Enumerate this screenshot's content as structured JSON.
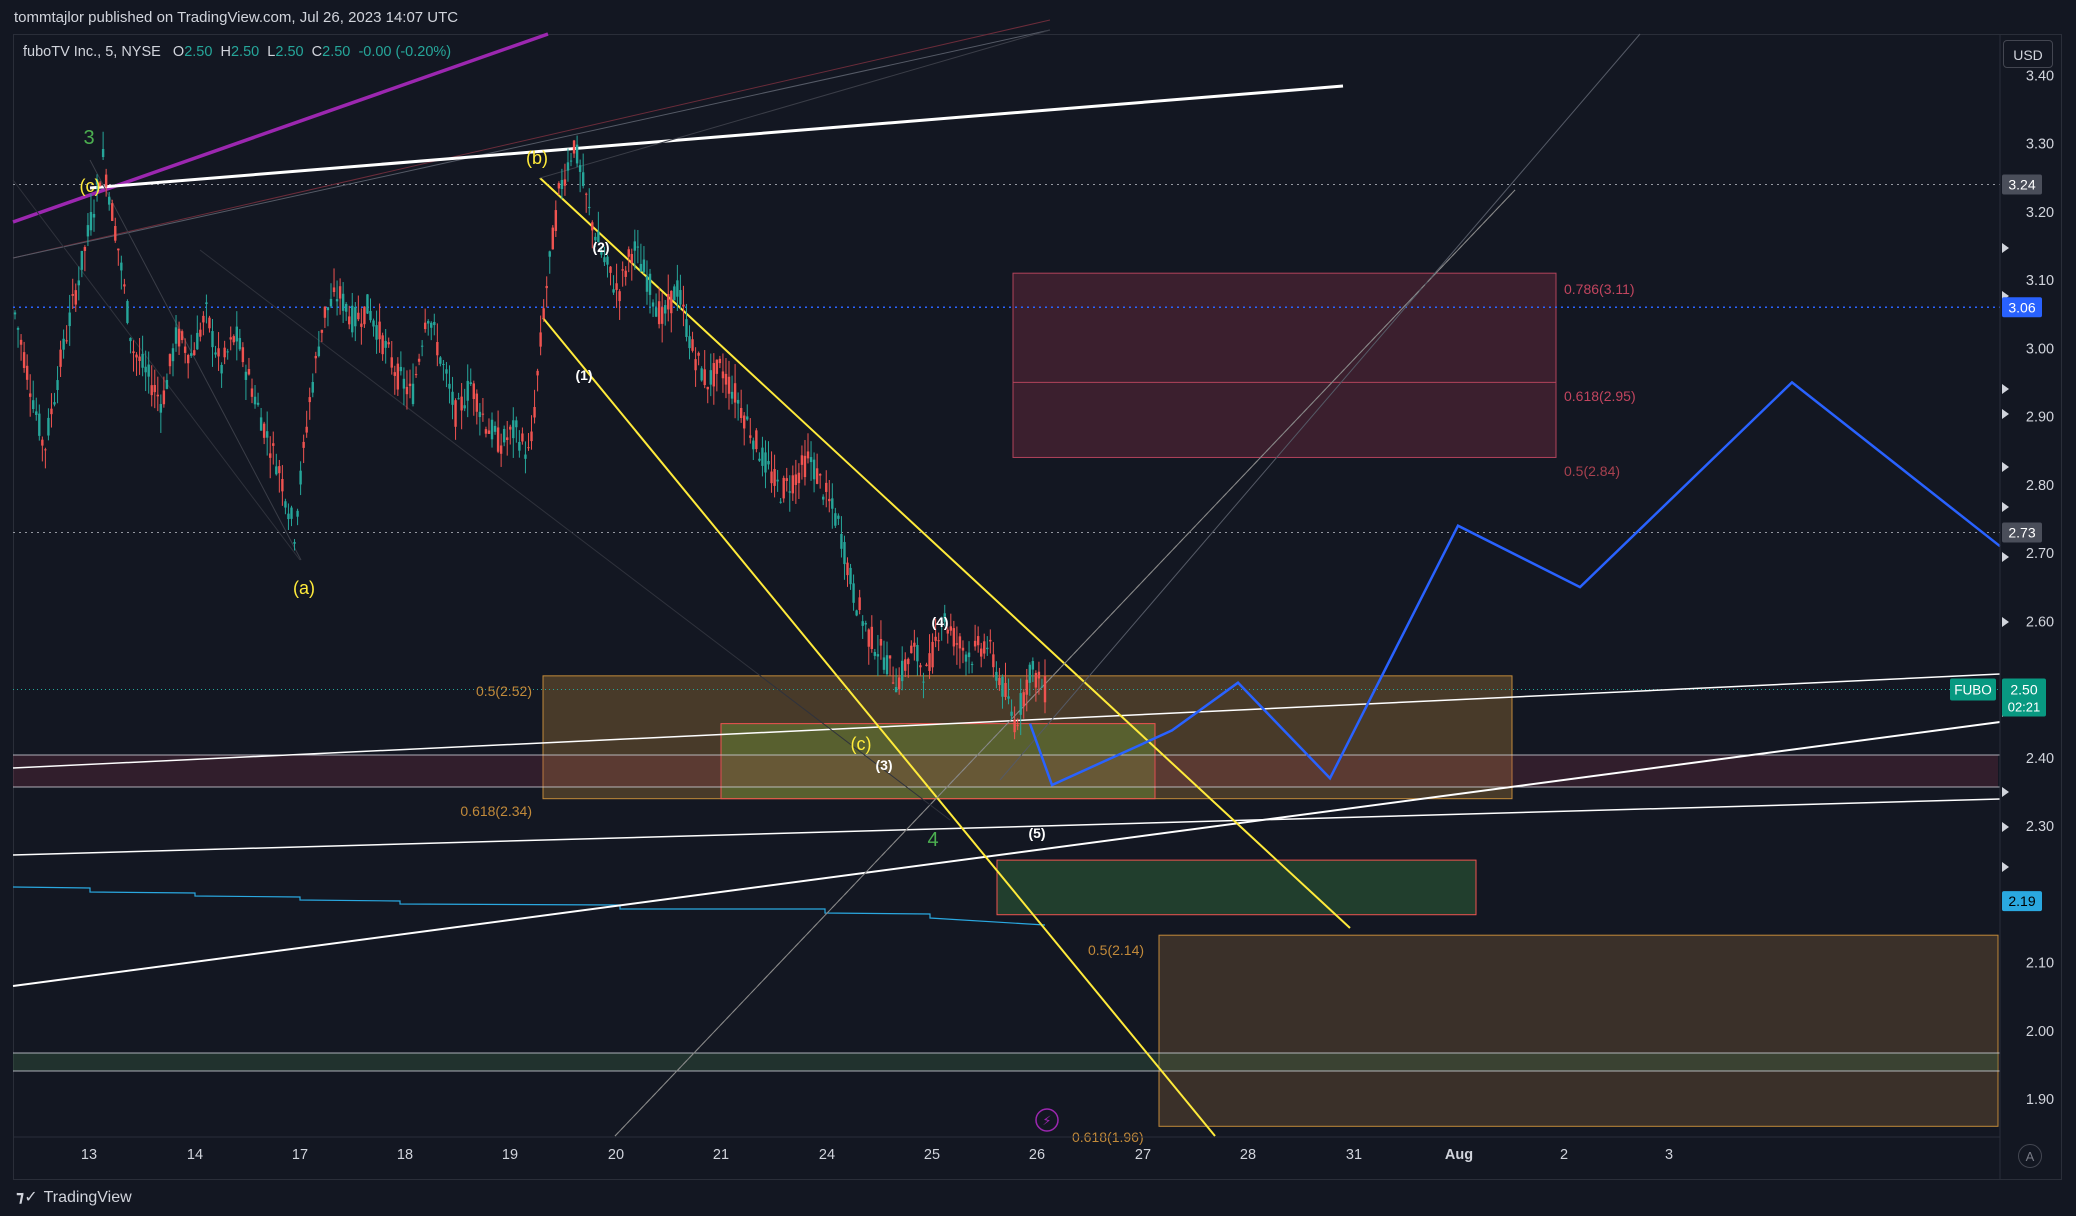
{
  "header": {
    "published": "tommtajlor published on TradingView.com, Jul 26, 2023 14:07 UTC"
  },
  "symbol": {
    "name": "fuboTV Inc., 5, NYSE",
    "o_label": "O",
    "o": "2.50",
    "h_label": "H",
    "h": "2.50",
    "l_label": "L",
    "l": "2.50",
    "c_label": "C",
    "c": "2.50",
    "change": "-0.00 (-0.20%)"
  },
  "currency_button": "USD",
  "footer": {
    "brand": "TradingView",
    "auto_label": "A"
  },
  "colors": {
    "background": "#131722",
    "up": "#26a69a",
    "down": "#ef5350",
    "projection": "#2962ff",
    "channel": "#ffeb3b",
    "fan": "#9c27b0",
    "fib_red": "#b2435b",
    "fib_orange": "#c28a3a"
  },
  "chart_data": {
    "type": "candlestick",
    "ylim": [
      1.86,
      3.5
    ],
    "y_ticks": [
      "3.40",
      "3.30",
      "3.20",
      "3.10",
      "3.00",
      "2.90",
      "2.80",
      "2.70",
      "2.60",
      "2.40",
      "2.30",
      "2.10",
      "2.00",
      "1.90"
    ],
    "x_ticks": [
      "13",
      "14",
      "17",
      "18",
      "19",
      "20",
      "21",
      "24",
      "25",
      "26",
      "27",
      "28",
      "31",
      "Aug",
      "2",
      "3"
    ],
    "price_path": [
      3.05,
      2.95,
      2.85,
      2.97,
      3.07,
      3.17,
      3.28,
      3.15,
      3.0,
      2.96,
      2.92,
      3.02,
      2.99,
      3.05,
      2.97,
      3.02,
      2.95,
      2.88,
      2.82,
      2.73,
      2.92,
      3.05,
      3.08,
      3.04,
      3.06,
      3.01,
      2.96,
      2.93,
      3.06,
      2.98,
      2.9,
      2.95,
      2.89,
      2.86,
      2.88,
      2.84,
      3.07,
      3.23,
      3.3,
      3.2,
      3.13,
      3.08,
      3.15,
      3.1,
      3.04,
      3.09,
      3.0,
      2.95,
      2.97,
      2.93,
      2.88,
      2.83,
      2.79,
      2.81,
      2.84,
      2.79,
      2.74,
      2.64,
      2.58,
      2.55,
      2.51,
      2.56,
      2.52,
      2.61,
      2.57,
      2.55,
      2.57,
      2.51,
      2.45,
      2.53,
      2.5
    ],
    "price_labels": [
      {
        "text": "3.24",
        "value": 3.24,
        "bg": "#4a4e5a",
        "fg": "#ffffff"
      },
      {
        "text": "3.06",
        "value": 3.06,
        "bg": "#2962ff",
        "fg": "#ffffff"
      },
      {
        "text": "2.73",
        "value": 2.73,
        "bg": "#4a4e5a",
        "fg": "#ffffff"
      },
      {
        "text": "2.19",
        "value": 2.19,
        "bg": "#2aa8e0",
        "fg": "#000000"
      }
    ],
    "last_price": {
      "symbol": "FUBO",
      "price": "2.50",
      "countdown": "02:21",
      "value": 2.5
    },
    "wave_labels": [
      {
        "text": "3",
        "color": "#4caf50"
      },
      {
        "text": "(c)",
        "color": "#ffeb3b"
      },
      {
        "text": "(b)",
        "color": "#ffeb3b"
      },
      {
        "text": "(a)",
        "color": "#ffeb3b"
      },
      {
        "text": "(2)",
        "color": "#ffffff"
      },
      {
        "text": "(1)",
        "color": "#ffffff"
      },
      {
        "text": "(4)",
        "color": "#ffffff"
      },
      {
        "text": "(3)",
        "color": "#ffffff"
      },
      {
        "text": "(c)",
        "color": "#ffeb3b"
      },
      {
        "text": "4",
        "color": "#4caf50"
      },
      {
        "text": "(5)",
        "color": "#ffffff"
      }
    ],
    "fib_labels": [
      {
        "text": "0.786(3.11)",
        "color": "#c2455f"
      },
      {
        "text": "0.618(2.95)",
        "color": "#c2455f"
      },
      {
        "text": "0.5(2.84)",
        "color": "#a8414f"
      },
      {
        "text": "0.5(2.52)",
        "color": "#c28a3a"
      },
      {
        "text": "0.618(2.34)",
        "color": "#c28a3a"
      },
      {
        "text": "0.5(2.14)",
        "color": "#c28a3a"
      },
      {
        "text": "0.618(1.96)",
        "color": "#c28a3a"
      }
    ],
    "zones": [
      {
        "from": 3.11,
        "to": 2.84,
        "mid": 2.95,
        "fill": "rgba(178,55,85,0.25)",
        "stroke": "#b2435b"
      },
      {
        "from": 2.52,
        "to": 2.34,
        "fill": "rgba(194,138,58,0.3)",
        "stroke": "#c28a3a"
      },
      {
        "from": 2.45,
        "to": 2.34,
        "fill": "rgba(120,170,60,0.35)",
        "stroke": "#ef5350"
      },
      {
        "from": 2.25,
        "to": 2.17,
        "fill": "rgba(50,110,60,0.45)",
        "stroke": "#ef5350"
      },
      {
        "from": 2.14,
        "to": 1.86,
        "fill": "rgba(150,105,60,0.3)",
        "stroke": "#c28a3a"
      }
    ],
    "projection_path": [
      2.45,
      2.36,
      2.44,
      2.51,
      2.37,
      2.74,
      2.65,
      2.95,
      2.71
    ]
  }
}
